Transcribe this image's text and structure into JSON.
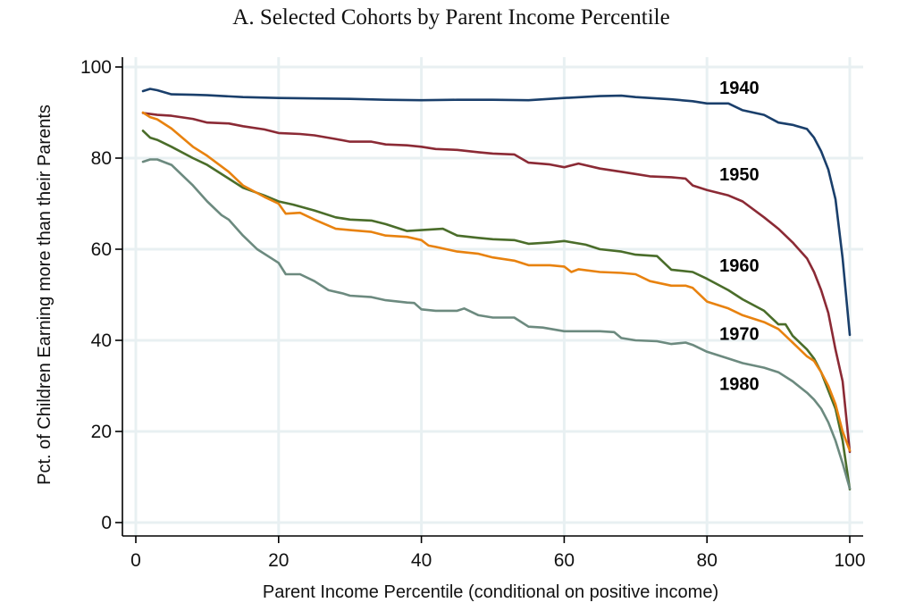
{
  "chart_data": {
    "type": "line",
    "title": "A. Selected Cohorts by Parent Income Percentile",
    "xlabel": "Parent Income Percentile (conditional on positive income)",
    "ylabel": "Pct. of Children Earning more than their Parents",
    "xlim": [
      0,
      100
    ],
    "ylim": [
      0,
      100
    ],
    "xticks": [
      0,
      20,
      40,
      60,
      80,
      100
    ],
    "yticks": [
      0,
      20,
      40,
      60,
      80,
      100
    ],
    "grid": true,
    "legend": "inline labels at right",
    "series": [
      {
        "name": "1940",
        "color": "#1a3f6b",
        "label_at": [
          81.5,
          95.5
        ],
        "x": [
          1,
          2,
          3,
          5,
          8,
          10,
          15,
          20,
          25,
          30,
          35,
          40,
          45,
          50,
          55,
          60,
          65,
          68,
          70,
          75,
          78,
          80,
          83,
          85,
          88,
          90,
          92,
          94,
          95,
          96,
          97,
          98,
          99,
          100
        ],
        "y": [
          94.7,
          95.2,
          94.9,
          94.0,
          93.9,
          93.8,
          93.4,
          93.2,
          93.1,
          93.0,
          92.8,
          92.7,
          92.8,
          92.8,
          92.7,
          93.2,
          93.6,
          93.7,
          93.4,
          92.9,
          92.5,
          92.0,
          92.0,
          90.5,
          89.5,
          87.8,
          87.3,
          86.4,
          84.5,
          81.5,
          77.5,
          71.0,
          58.0,
          41.2
        ]
      },
      {
        "name": "1950",
        "color": "#8b2a35",
        "label_at": [
          81.5,
          76.5
        ],
        "x": [
          1,
          3,
          5,
          8,
          10,
          13,
          15,
          18,
          20,
          23,
          25,
          28,
          30,
          33,
          35,
          38,
          40,
          42,
          45,
          48,
          50,
          53,
          55,
          58,
          60,
          62,
          65,
          68,
          70,
          72,
          75,
          77,
          78,
          80,
          83,
          85,
          88,
          90,
          92,
          94,
          95,
          96,
          97,
          98,
          99,
          100
        ],
        "y": [
          89.9,
          89.5,
          89.3,
          88.6,
          87.8,
          87.6,
          87.0,
          86.3,
          85.5,
          85.3,
          85.0,
          84.2,
          83.6,
          83.6,
          83.0,
          82.8,
          82.5,
          82.0,
          81.8,
          81.3,
          81.0,
          80.8,
          79.0,
          78.6,
          78.0,
          78.8,
          77.7,
          77.0,
          76.5,
          76.0,
          75.8,
          75.5,
          74.0,
          73.0,
          71.8,
          70.5,
          67.0,
          64.5,
          61.5,
          58.0,
          55.0,
          51.0,
          46.0,
          38.0,
          31.0,
          15.5
        ]
      },
      {
        "name": "1960",
        "color": "#4a6d2a",
        "label_at": [
          81.5,
          56.5
        ],
        "x": [
          1,
          2,
          3,
          5,
          8,
          10,
          13,
          15,
          18,
          20,
          22,
          25,
          28,
          30,
          33,
          35,
          38,
          40,
          43,
          45,
          48,
          50,
          53,
          55,
          58,
          60,
          63,
          65,
          68,
          70,
          73,
          75,
          78,
          80,
          83,
          85,
          88,
          90,
          91,
          92,
          94,
          95,
          96,
          97,
          98,
          99,
          100
        ],
        "y": [
          86.0,
          84.5,
          84.0,
          82.5,
          80.0,
          78.5,
          75.5,
          73.5,
          71.8,
          70.5,
          69.8,
          68.5,
          67.0,
          66.5,
          66.3,
          65.5,
          64.0,
          64.2,
          64.5,
          63.0,
          62.5,
          62.2,
          62.0,
          61.2,
          61.5,
          61.8,
          61.0,
          60.0,
          59.5,
          58.8,
          58.5,
          55.5,
          55.0,
          53.5,
          51.0,
          49.0,
          46.5,
          43.5,
          43.5,
          41.0,
          38.0,
          36.0,
          33.0,
          29.0,
          25.0,
          18.0,
          7.3
        ]
      },
      {
        "name": "1970",
        "color": "#e8820f",
        "label_at": [
          81.5,
          41.5
        ],
        "x": [
          1,
          2,
          3,
          5,
          8,
          10,
          13,
          15,
          18,
          20,
          21,
          23,
          25,
          28,
          30,
          33,
          35,
          38,
          40,
          41,
          42,
          45,
          48,
          50,
          53,
          55,
          58,
          60,
          61,
          62,
          65,
          68,
          70,
          72,
          75,
          77,
          78,
          80,
          83,
          85,
          88,
          90,
          92,
          94,
          95,
          96,
          97,
          98,
          99,
          100
        ],
        "y": [
          90.0,
          89.0,
          88.5,
          86.5,
          82.5,
          80.5,
          77.0,
          74.0,
          71.5,
          70.0,
          67.8,
          68.0,
          66.5,
          64.5,
          64.2,
          63.8,
          63.0,
          62.7,
          62.0,
          60.8,
          60.5,
          59.5,
          59.0,
          58.2,
          57.5,
          56.5,
          56.5,
          56.2,
          55.0,
          55.6,
          55.0,
          54.8,
          54.5,
          53.0,
          52.0,
          52.0,
          51.5,
          48.5,
          47.0,
          45.5,
          44.0,
          42.5,
          39.5,
          36.5,
          35.5,
          33.0,
          30.0,
          26.0,
          20.0,
          15.8
        ]
      },
      {
        "name": "1980",
        "color": "#6c8a7f",
        "label_at": [
          81.5,
          30.5
        ],
        "x": [
          1,
          2,
          3,
          5,
          7,
          8,
          10,
          12,
          13,
          15,
          17,
          19,
          20,
          21,
          23,
          25,
          27,
          29,
          30,
          33,
          35,
          38,
          39,
          40,
          42,
          45,
          46,
          48,
          50,
          53,
          55,
          57,
          60,
          63,
          65,
          67,
          68,
          70,
          73,
          75,
          77,
          78,
          80,
          83,
          85,
          88,
          90,
          92,
          94,
          95,
          96,
          97,
          98,
          99,
          100
        ],
        "y": [
          79.2,
          79.7,
          79.7,
          78.5,
          75.5,
          74.0,
          70.5,
          67.5,
          66.5,
          63.0,
          60.0,
          58.0,
          57.0,
          54.5,
          54.5,
          53.0,
          51.0,
          50.3,
          49.8,
          49.5,
          48.8,
          48.3,
          48.2,
          46.8,
          46.5,
          46.5,
          47.0,
          45.5,
          45.0,
          45.0,
          43.0,
          42.8,
          42.0,
          42.0,
          42.0,
          41.8,
          40.5,
          40.0,
          39.8,
          39.2,
          39.5,
          39.0,
          37.5,
          36.0,
          35.0,
          34.0,
          33.0,
          31.0,
          28.5,
          27.0,
          25.0,
          22.0,
          18.0,
          13.0,
          7.5
        ]
      }
    ]
  }
}
